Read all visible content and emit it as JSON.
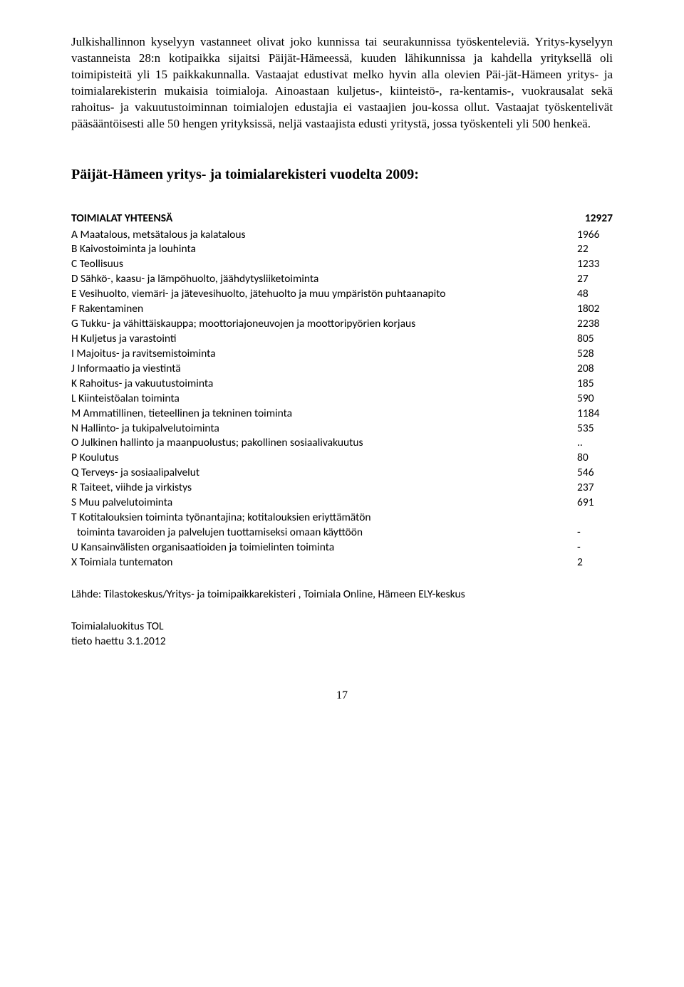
{
  "paragraph": "Julkishallinnon kyselyyn vastanneet olivat joko kunnissa tai seurakunnissa työskenteleviä. Yritys-kyselyyn vastanneista 28:n kotipaikka sijaitsi Päijät-Hämeessä, kuuden lähikunnissa ja kahdella yrityksellä oli toimipisteitä yli 15 paikkakunnalla. Vastaajat edustivat melko hyvin alla olevien Päi-jät-Hämeen yritys- ja toimialarekisterin mukaisia toimialoja. Ainoastaan kuljetus-, kiinteistö-, ra-kentamis-, vuokrausalat sekä rahoitus- ja vakuutustoiminnan toimialojen edustajia ei vastaajien jou-kossa ollut. Vastaajat työskentelivät pääsääntöisesti alle 50 hengen yrityksissä, neljä vastaajista edusti yritystä, jossa työskenteli yli 500 henkeä.",
  "heading": "Päijät-Hämeen yritys- ja toimialarekisteri vuodelta 2009:",
  "table": {
    "header_label": "TOIMIALAT YHTEENSÄ",
    "header_value": "12927",
    "rows": [
      {
        "label": "A Maatalous, metsätalous ja kalatalous",
        "value": "1966"
      },
      {
        "label": "B Kaivostoiminta ja louhinta",
        "value": "22"
      },
      {
        "label": "C Teollisuus",
        "value": "1233"
      },
      {
        "label": "D Sähkö-, kaasu- ja lämpöhuolto, jäähdytysliiketoiminta",
        "value": "27"
      },
      {
        "label": "E Vesihuolto, viemäri- ja jätevesihuolto, jätehuolto ja muu ympäristön puhtaanapito",
        "value": "48"
      },
      {
        "label": "F Rakentaminen",
        "value": "1802"
      },
      {
        "label": "G Tukku- ja vähittäiskauppa; moottoriajoneuvojen ja moottoripyörien korjaus",
        "value": "2238"
      },
      {
        "label": "H Kuljetus ja varastointi",
        "value": "805"
      },
      {
        "label": "I Majoitus- ja ravitsemistoiminta",
        "value": "528"
      },
      {
        "label": "J Informaatio ja viestintä",
        "value": "208"
      },
      {
        "label": "K Rahoitus- ja vakuutustoiminta",
        "value": "185"
      },
      {
        "label": "L Kiinteistöalan toiminta",
        "value": "590"
      },
      {
        "label": "M Ammatillinen, tieteellinen ja tekninen toiminta",
        "value": "1184"
      },
      {
        "label": "N Hallinto- ja tukipalvelutoiminta",
        "value": "535"
      },
      {
        "label": "O Julkinen hallinto ja maanpuolustus; pakollinen sosiaalivakuutus",
        "value": ".."
      },
      {
        "label": "P Koulutus",
        "value": "80"
      },
      {
        "label": "Q Terveys- ja sosiaalipalvelut",
        "value": "546"
      },
      {
        "label": "R Taiteet, viihde ja virkistys",
        "value": "237"
      },
      {
        "label": "S Muu palvelutoiminta",
        "value": "691"
      }
    ],
    "multirow_t": {
      "line1": "T Kotitalouksien toiminta työnantajina; kotitalouksien eriyttämätön",
      "line2": "toiminta tavaroiden ja palvelujen tuottamiseksi omaan käyttöön",
      "value": "-"
    },
    "row_u": {
      "label": "U Kansainvälisten organisaatioiden ja toimielinten toiminta",
      "value": "-"
    },
    "row_x": {
      "label": "X Toimiala tuntematon",
      "value": "2"
    }
  },
  "source": "Lähde: Tilastokeskus/Yritys- ja toimipaikkarekisteri , Toimiala Online, Hämeen ELY-keskus",
  "footer_line1": "Toimialaluokitus TOL",
  "footer_line2": "tieto haettu 3.1.2012",
  "page_number": "17"
}
